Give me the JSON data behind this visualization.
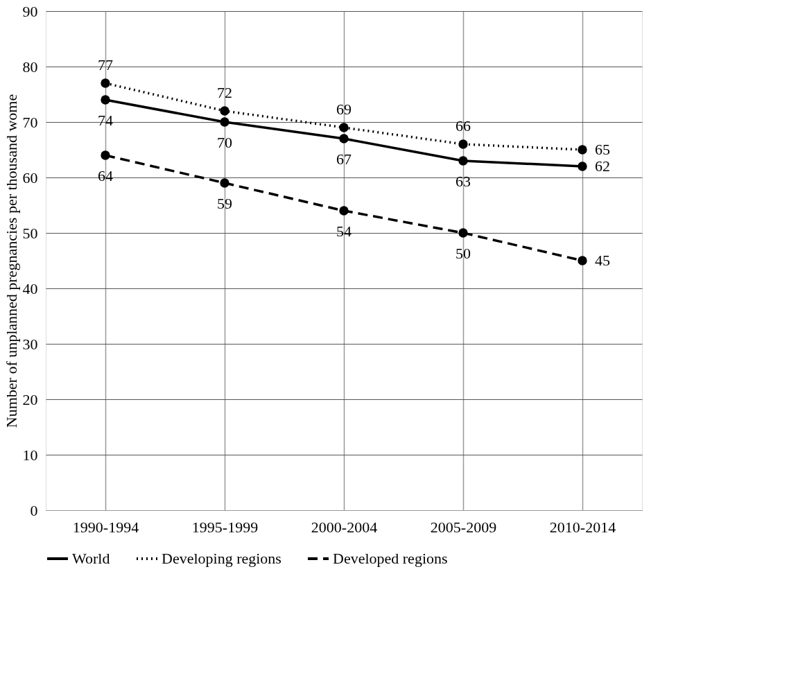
{
  "chart_data": {
    "type": "line",
    "ylabel": "Number of unplanned pregnancies per thousand wome",
    "categories": [
      "1990-1994",
      "1995-1999",
      "2000-2004",
      "2005-2009",
      "2010-2014"
    ],
    "series": [
      {
        "name": "World",
        "color": "#000000",
        "line_style": "solid",
        "values": [
          74,
          70,
          67,
          63,
          62
        ]
      },
      {
        "name": "Developing regions",
        "color": "#000000",
        "line_style": "dotted",
        "values": [
          77,
          72,
          69,
          66,
          65
        ]
      },
      {
        "name": "Developed regions",
        "color": "#000000",
        "line_style": "dashed",
        "values": [
          64,
          59,
          54,
          50,
          45
        ]
      }
    ],
    "ylim": [
      0,
      90
    ],
    "yticks": [
      0,
      10,
      20,
      30,
      40,
      50,
      60,
      70,
      80,
      90
    ],
    "grid": true,
    "legend": "bottom",
    "marker": "circle",
    "data_labels": true
  }
}
